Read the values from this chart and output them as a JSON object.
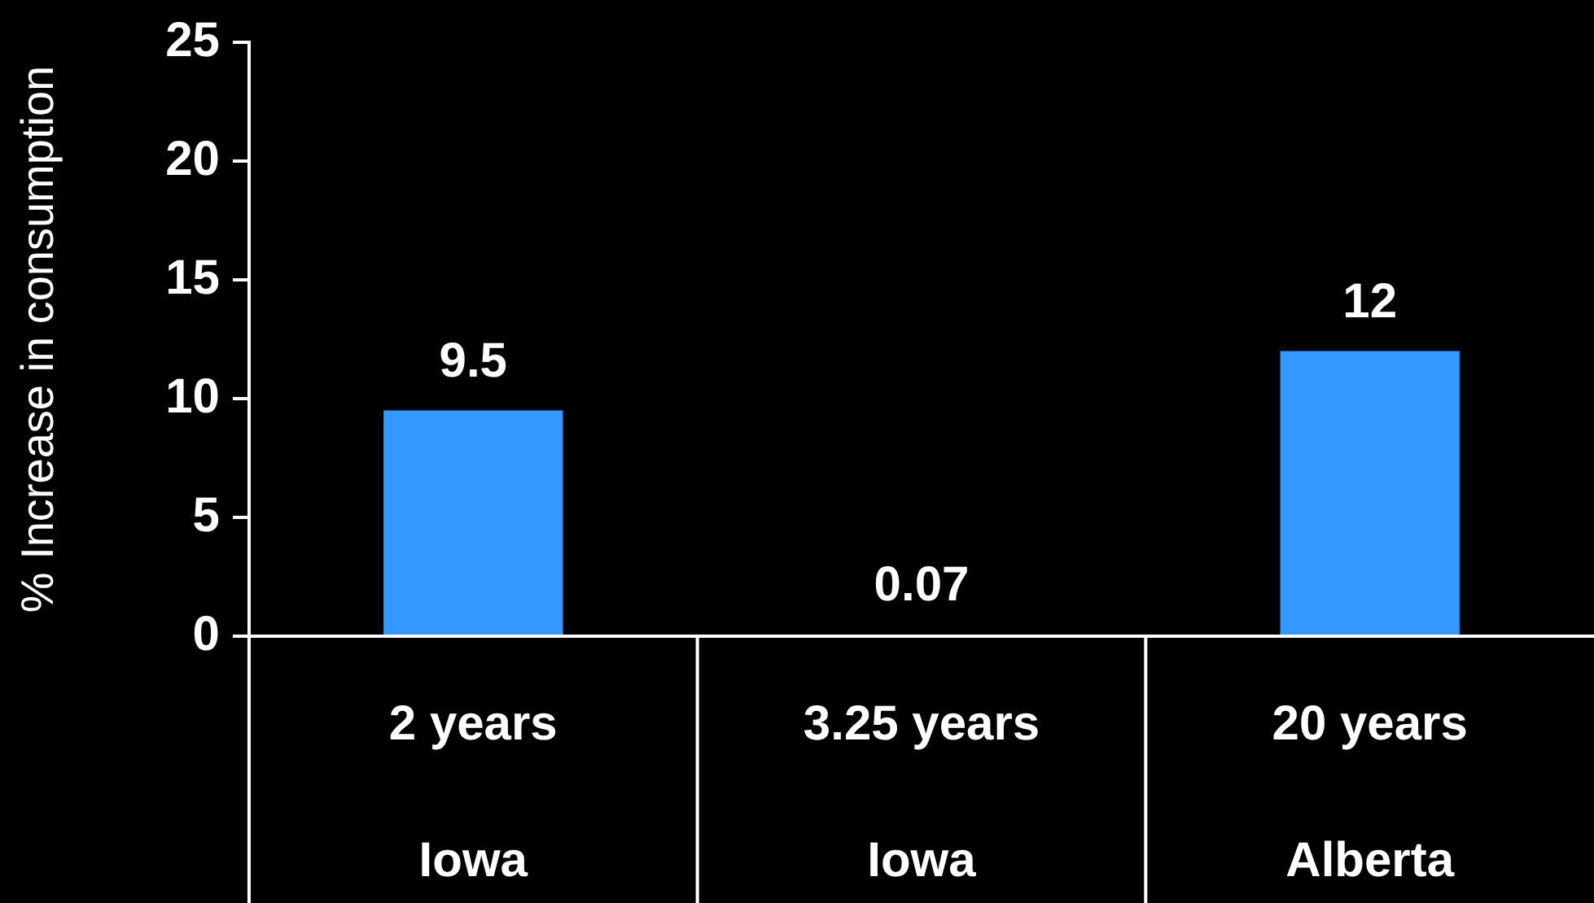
{
  "chart_data": {
    "type": "bar",
    "ylabel": "% Increase in consumption",
    "categories": [
      "2 years\nIowa",
      "3.25 years\nIowa",
      "20 years\nAlberta"
    ],
    "values": [
      9.5,
      0.07,
      12
    ],
    "color": "#3399ff",
    "ylim": [
      0,
      25
    ],
    "yticks": [
      0,
      5,
      10,
      15,
      20,
      25
    ],
    "grid": false,
    "legend": false,
    "data_labels": true
  }
}
